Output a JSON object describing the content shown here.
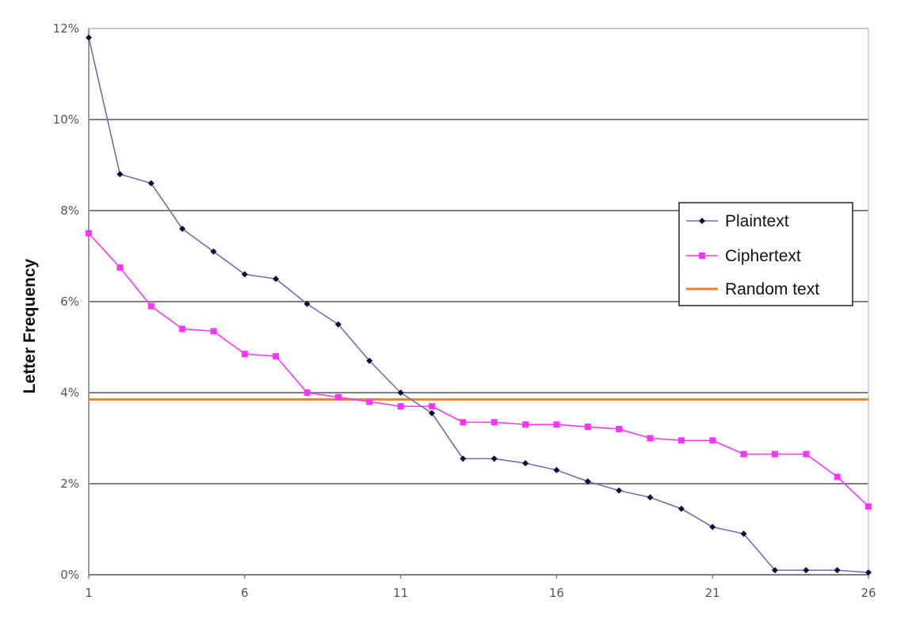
{
  "chart_data": {
    "type": "line",
    "title": "",
    "xlabel": "",
    "ylabel": "Letter Frequency",
    "x": [
      1,
      2,
      3,
      4,
      5,
      6,
      7,
      8,
      9,
      10,
      11,
      12,
      13,
      14,
      15,
      16,
      17,
      18,
      19,
      20,
      21,
      22,
      23,
      24,
      25,
      26
    ],
    "xlim": [
      1,
      26
    ],
    "ylim": [
      0,
      12
    ],
    "x_ticks": [
      "1",
      "6",
      "11",
      "16",
      "21",
      "26"
    ],
    "y_ticks": [
      "0%",
      "2%",
      "4%",
      "6%",
      "8%",
      "10%",
      "12%"
    ],
    "y_unit": "%",
    "grid": "horizontal",
    "legend_position": "right",
    "series": [
      {
        "name": "Plaintext",
        "color": "#6b6fb0",
        "marker": "diamond",
        "values": [
          11.8,
          8.8,
          8.6,
          7.6,
          7.1,
          6.6,
          6.5,
          5.95,
          5.5,
          4.7,
          4.0,
          3.55,
          2.55,
          2.55,
          2.45,
          2.3,
          2.05,
          1.85,
          1.7,
          1.45,
          1.05,
          0.9,
          0.1,
          0.1,
          0.1,
          0.05
        ]
      },
      {
        "name": "Ciphertext",
        "color": "#ff33ff",
        "marker": "square",
        "values": [
          7.5,
          6.75,
          5.9,
          5.4,
          5.35,
          4.85,
          4.8,
          4.0,
          3.9,
          3.8,
          3.7,
          3.7,
          3.35,
          3.35,
          3.3,
          3.3,
          3.25,
          3.2,
          3.0,
          2.95,
          2.95,
          2.65,
          2.65,
          2.65,
          2.15,
          1.5
        ]
      },
      {
        "name": "Random text",
        "color": "#f08030",
        "marker": "none",
        "values": [
          3.85,
          3.85,
          3.85,
          3.85,
          3.85,
          3.85,
          3.85,
          3.85,
          3.85,
          3.85,
          3.85,
          3.85,
          3.85,
          3.85,
          3.85,
          3.85,
          3.85,
          3.85,
          3.85,
          3.85,
          3.85,
          3.85,
          3.85,
          3.85,
          3.85,
          3.85
        ]
      }
    ]
  }
}
